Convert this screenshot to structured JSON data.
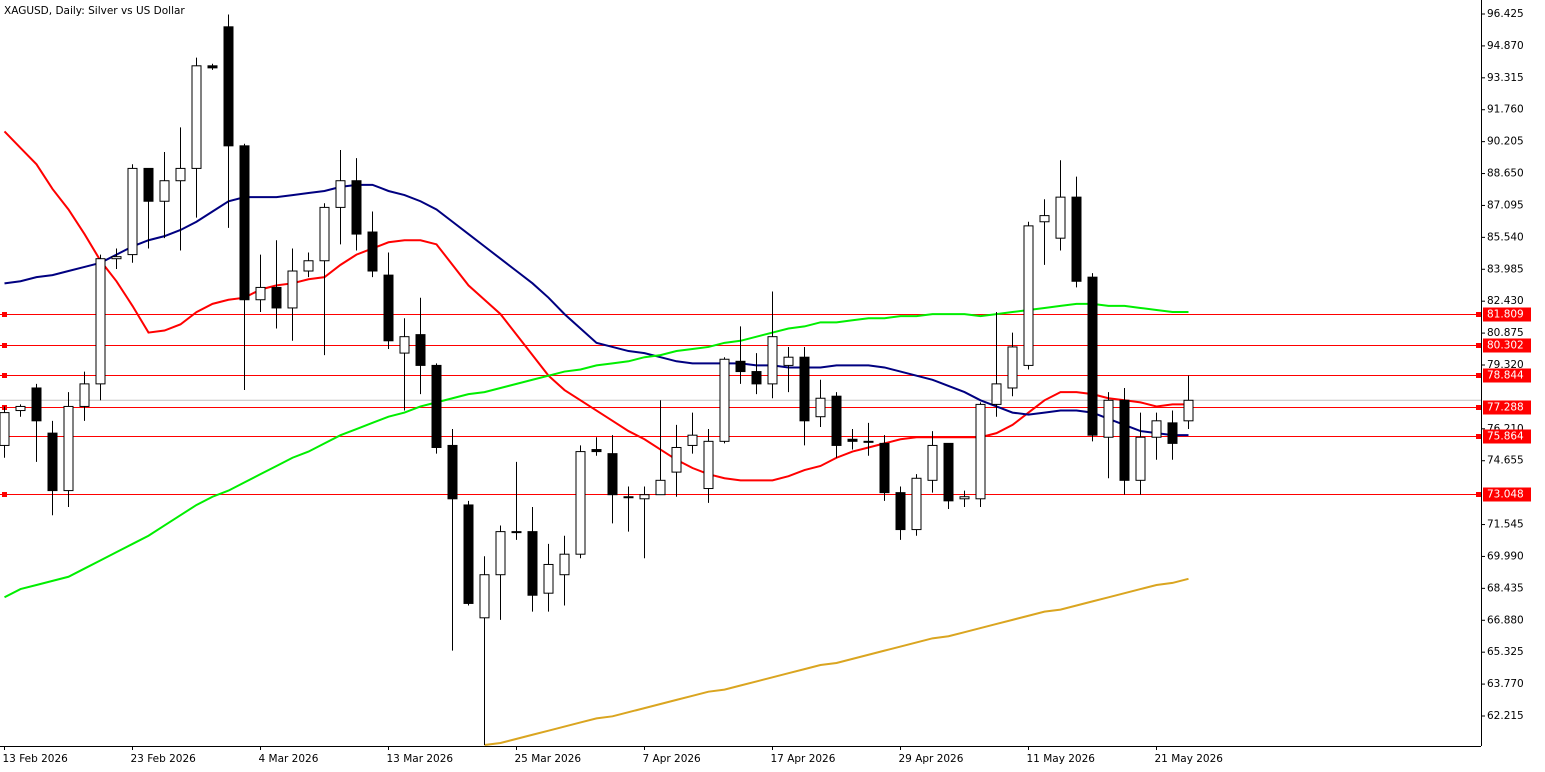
{
  "chart_data": {
    "type": "candlestick",
    "title": "XAGUSD, Daily:  Silver vs US Dollar",
    "categories": [
      "13 Feb 2026",
      null,
      null,
      null,
      null,
      null,
      null,
      null,
      "23 Feb 2026",
      null,
      null,
      null,
      null,
      null,
      null,
      null,
      "4 Mar 2026",
      null,
      null,
      null,
      null,
      null,
      null,
      null,
      "13 Mar 2026",
      null,
      null,
      null,
      null,
      null,
      null,
      null,
      "25 Mar 2026",
      null,
      null,
      null,
      null,
      null,
      null,
      null,
      "7 Apr 2026",
      null,
      null,
      null,
      null,
      null,
      null,
      null,
      "17 Apr 2026",
      null,
      null,
      null,
      null,
      null,
      null,
      null,
      "29 Apr 2026",
      null,
      null,
      null,
      null,
      null,
      null,
      null,
      "11 May 2026",
      null,
      null,
      null,
      null,
      null,
      null,
      null,
      "21 May 2026",
      null,
      null
    ],
    "open": [
      75.4,
      77.1,
      78.2,
      76.0,
      73.2,
      77.3,
      78.4,
      84.5,
      84.7,
      88.9,
      87.3,
      88.3,
      88.9,
      93.9,
      95.8,
      90.0,
      82.5,
      83.1,
      82.1,
      83.9,
      84.4,
      87.0,
      88.3,
      85.8,
      83.7,
      79.9,
      80.8,
      79.3,
      75.4,
      72.5,
      67.0,
      69.1,
      71.2,
      71.2,
      68.2,
      69.1,
      70.1,
      75.2,
      75.0,
      72.9,
      72.8,
      73.0,
      74.1,
      75.4,
      73.3,
      75.6,
      79.5,
      79.0,
      78.4,
      79.3,
      79.7,
      76.8,
      77.8,
      75.7,
      75.6,
      75.5,
      73.1,
      71.3,
      73.7,
      75.5,
      72.8,
      72.8,
      77.4,
      78.2,
      79.3,
      86.3,
      85.5,
      87.5,
      83.6,
      75.8,
      77.6,
      73.7,
      75.8,
      76.5,
      76.6
    ],
    "high": [
      77.3,
      77.4,
      78.4,
      76.6,
      78.0,
      79.0,
      84.7,
      85.0,
      89.1,
      88.9,
      89.7,
      90.9,
      94.3,
      94.0,
      96.4,
      90.1,
      84.7,
      85.4,
      85.0,
      84.8,
      87.2,
      89.8,
      89.4,
      86.8,
      84.8,
      81.6,
      82.6,
      79.4,
      76.2,
      72.7,
      70.0,
      71.5,
      74.6,
      72.4,
      70.6,
      71.0,
      75.4,
      75.8,
      75.9,
      73.4,
      73.4,
      77.6,
      76.4,
      77.0,
      76.2,
      79.7,
      81.2,
      79.9,
      82.9,
      80.2,
      80.2,
      78.6,
      78.0,
      76.2,
      76.5,
      75.9,
      73.4,
      74.0,
      76.1,
      75.5,
      73.2,
      77.5,
      81.9,
      80.9,
      86.3,
      87.4,
      89.3,
      88.5,
      83.8,
      78.0,
      78.2,
      77.0,
      77.0,
      77.1,
      78.8
    ],
    "low": [
      74.8,
      76.8,
      74.6,
      72.0,
      72.4,
      76.6,
      77.6,
      84.0,
      84.3,
      85.0,
      85.5,
      84.9,
      86.5,
      93.7,
      86.0,
      78.1,
      81.9,
      81.1,
      80.5,
      83.6,
      79.8,
      85.2,
      84.9,
      83.6,
      80.1,
      77.1,
      77.9,
      75.0,
      65.4,
      67.6,
      60.8,
      66.9,
      70.8,
      67.3,
      67.3,
      67.6,
      69.9,
      74.9,
      71.6,
      71.2,
      69.9,
      73.0,
      72.9,
      75.0,
      72.6,
      75.5,
      78.4,
      77.9,
      77.7,
      78.0,
      75.4,
      76.3,
      74.8,
      75.2,
      74.9,
      72.7,
      70.8,
      71.0,
      73.1,
      72.3,
      72.4,
      72.4,
      76.8,
      77.8,
      79.1,
      84.2,
      84.9,
      83.1,
      75.6,
      73.8,
      73.0,
      73.0,
      74.7,
      74.7,
      76.2
    ],
    "close": [
      77.0,
      77.3,
      76.6,
      73.2,
      77.3,
      78.4,
      84.5,
      84.6,
      88.9,
      87.3,
      88.3,
      88.9,
      93.9,
      93.8,
      90.0,
      82.5,
      83.1,
      82.1,
      83.9,
      84.4,
      87.0,
      88.3,
      85.7,
      83.9,
      80.5,
      80.7,
      79.3,
      75.3,
      72.8,
      67.7,
      69.1,
      71.2,
      71.2,
      68.1,
      69.6,
      70.1,
      75.1,
      75.1,
      73.0,
      72.9,
      73.0,
      73.7,
      75.3,
      75.9,
      75.6,
      79.6,
      79.0,
      78.4,
      80.7,
      79.7,
      76.6,
      77.7,
      75.4,
      75.6,
      75.6,
      73.1,
      71.3,
      73.8,
      75.4,
      72.7,
      72.9,
      77.4,
      78.4,
      80.2,
      86.1,
      86.6,
      87.5,
      83.4,
      75.9,
      77.6,
      73.7,
      75.8,
      76.6,
      75.5,
      77.6
    ],
    "up_color": "#ffffff",
    "down_color": "#000000",
    "lines": [
      {
        "color": "#ff0000",
        "values": [
          90.7,
          89.9,
          89.1,
          87.9,
          86.9,
          85.7,
          84.4,
          83.4,
          82.2,
          80.9,
          81.0,
          81.3,
          81.9,
          82.3,
          82.5,
          82.6,
          83.0,
          83.2,
          83.3,
          83.5,
          83.6,
          84.2,
          84.7,
          85.0,
          85.3,
          85.4,
          85.4,
          85.2,
          84.2,
          83.2,
          82.5,
          81.8,
          80.8,
          79.8,
          78.8,
          78.1,
          77.6,
          77.1,
          76.6,
          76.1,
          75.7,
          75.2,
          74.7,
          74.3,
          74.0,
          73.8,
          73.7,
          73.7,
          73.7,
          73.9,
          74.2,
          74.4,
          74.8,
          75.1,
          75.3,
          75.5,
          75.7,
          75.8,
          75.8,
          75.8,
          75.8,
          75.8,
          76.0,
          76.4,
          77.0,
          77.6,
          78.0,
          78.0,
          77.9,
          77.7,
          77.6,
          77.5,
          77.3,
          77.4,
          77.4
        ]
      },
      {
        "color": "#000080",
        "values": [
          83.3,
          83.4,
          83.6,
          83.7,
          83.9,
          84.1,
          84.3,
          84.7,
          85.1,
          85.4,
          85.6,
          85.9,
          86.3,
          86.8,
          87.3,
          87.5,
          87.5,
          87.5,
          87.6,
          87.7,
          87.8,
          88.0,
          88.1,
          88.1,
          87.8,
          87.6,
          87.3,
          86.9,
          86.3,
          85.7,
          85.1,
          84.5,
          83.9,
          83.3,
          82.6,
          81.8,
          81.1,
          80.4,
          80.2,
          80.0,
          79.9,
          79.7,
          79.5,
          79.4,
          79.4,
          79.4,
          79.4,
          79.3,
          79.3,
          79.2,
          79.2,
          79.2,
          79.3,
          79.3,
          79.3,
          79.2,
          79.0,
          78.8,
          78.6,
          78.3,
          78.0,
          77.6,
          77.3,
          77.0,
          76.9,
          77.0,
          77.1,
          77.1,
          77.0,
          76.7,
          76.4,
          76.1,
          76.0,
          75.9,
          75.9
        ]
      },
      {
        "color": "#00ee00",
        "values": [
          68.0,
          68.4,
          68.6,
          68.8,
          69.0,
          69.4,
          69.8,
          70.2,
          70.6,
          71.0,
          71.5,
          72.0,
          72.5,
          72.9,
          73.2,
          73.6,
          74.0,
          74.4,
          74.8,
          75.1,
          75.5,
          75.9,
          76.2,
          76.5,
          76.8,
          77.0,
          77.3,
          77.5,
          77.7,
          77.9,
          78.0,
          78.2,
          78.4,
          78.6,
          78.8,
          79.0,
          79.1,
          79.3,
          79.4,
          79.5,
          79.7,
          79.8,
          80.0,
          80.1,
          80.2,
          80.4,
          80.5,
          80.7,
          80.9,
          81.1,
          81.2,
          81.4,
          81.4,
          81.5,
          81.6,
          81.6,
          81.7,
          81.7,
          81.8,
          81.8,
          81.8,
          81.7,
          81.8,
          81.9,
          82.0,
          82.1,
          82.2,
          82.3,
          82.3,
          82.2,
          82.2,
          82.1,
          82.0,
          81.9,
          81.9
        ]
      },
      {
        "color": "#daa520",
        "values": [
          null,
          null,
          null,
          null,
          null,
          null,
          null,
          null,
          null,
          null,
          null,
          null,
          null,
          null,
          null,
          null,
          null,
          null,
          null,
          null,
          null,
          null,
          null,
          null,
          null,
          null,
          null,
          null,
          null,
          null,
          60.8,
          60.9,
          61.1,
          61.3,
          61.5,
          61.7,
          61.9,
          62.1,
          62.2,
          62.4,
          62.6,
          62.8,
          63.0,
          63.2,
          63.4,
          63.5,
          63.7,
          63.9,
          64.1,
          64.3,
          64.5,
          64.7,
          64.8,
          65.0,
          65.2,
          65.4,
          65.6,
          65.8,
          66.0,
          66.1,
          66.3,
          66.5,
          66.7,
          66.9,
          67.1,
          67.3,
          67.4,
          67.6,
          67.8,
          68.0,
          68.2,
          68.4,
          68.6,
          68.7,
          68.9
        ]
      }
    ],
    "levels": [
      81.809,
      80.302,
      78.844,
      77.288,
      75.864,
      73.048
    ],
    "level_color": "#ff0000",
    "ylim": [
      60.753,
      97.107
    ],
    "yticks": [
      {
        "value": 96.425,
        "label": "96.425"
      },
      {
        "value": 94.87,
        "label": "94.870"
      },
      {
        "value": 93.315,
        "label": "93.315"
      },
      {
        "value": 91.76,
        "label": "91.760"
      },
      {
        "value": 90.205,
        "label": "90.205"
      },
      {
        "value": 88.65,
        "label": "88.650"
      },
      {
        "value": 87.095,
        "label": "87.095"
      },
      {
        "value": 85.54,
        "label": "85.540"
      },
      {
        "value": 83.985,
        "label": "83.985"
      },
      {
        "value": 82.43,
        "label": "82.430"
      },
      {
        "value": 80.875,
        "label": "80.875"
      },
      {
        "value": 79.32,
        "label": "79.320"
      },
      {
        "value": 76.21,
        "label": "76.210"
      },
      {
        "value": 74.655,
        "label": "74.655"
      },
      {
        "value": 71.545,
        "label": "71.545"
      },
      {
        "value": 69.99,
        "label": "69.990"
      },
      {
        "value": 68.435,
        "label": "68.435"
      },
      {
        "value": 66.88,
        "label": "66.880"
      },
      {
        "value": 65.325,
        "label": "65.325"
      },
      {
        "value": 63.77,
        "label": "63.770"
      },
      {
        "value": 62.215,
        "label": "62.215"
      }
    ],
    "grid": false
  }
}
